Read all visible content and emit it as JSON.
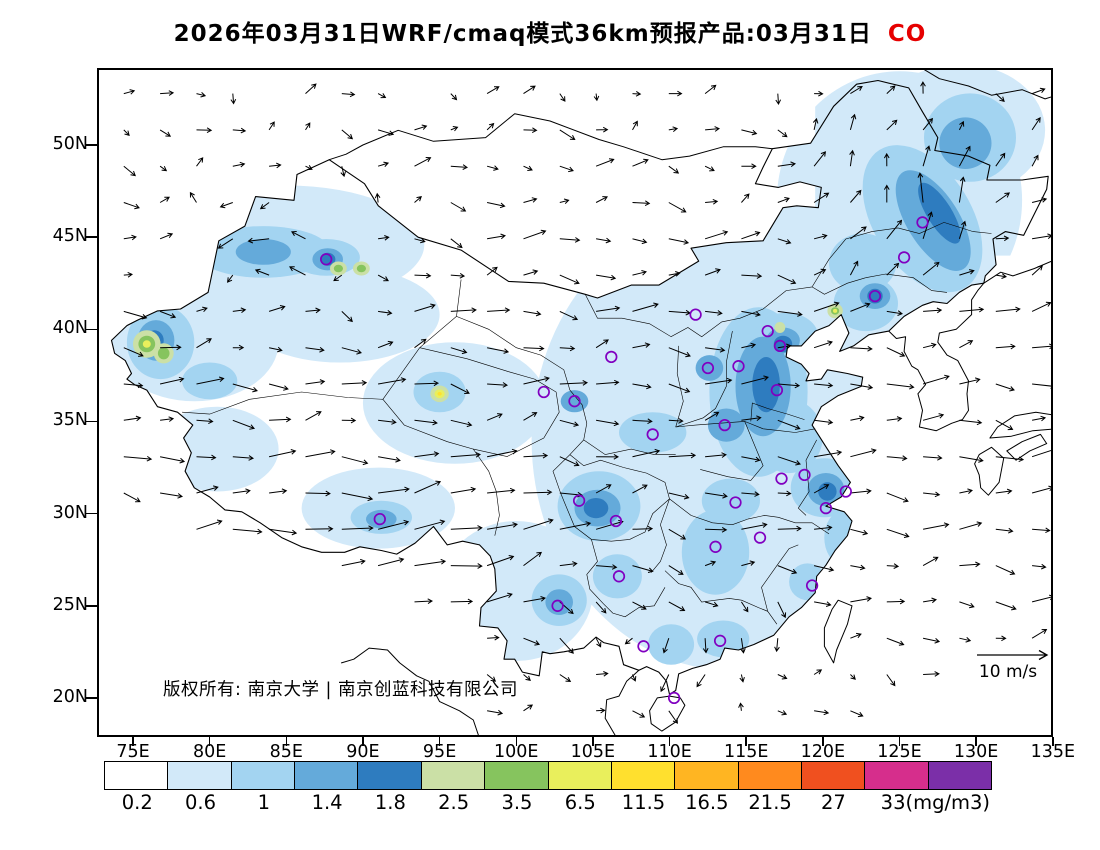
{
  "title": {
    "main": "2026年03月31日WRF/cmaq模式36km预报产品:03月31日",
    "species": "CO",
    "species_color": "#e60000"
  },
  "map": {
    "copyright": "版权所有: 南京大学 | 南京创蓝科技有限公司",
    "wind_ref_label": "10 m/s"
  },
  "axes": {
    "lat_labels": [
      "50N",
      "45N",
      "40N",
      "35N",
      "30N",
      "25N",
      "20N"
    ],
    "lon_labels": [
      "75E",
      "80E",
      "85E",
      "90E",
      "95E",
      "100E",
      "105E",
      "110E",
      "115E",
      "120E",
      "125E",
      "130E",
      "135E"
    ]
  },
  "colorbar": {
    "labels": [
      "0.2",
      "0.6",
      "1",
      "1.4",
      "1.8",
      "2.5",
      "3.5",
      "6.5",
      "11.5",
      "16.5",
      "21.5",
      "27",
      "33(mg/m3)"
    ],
    "units": "mg/m3"
  },
  "chart_data": {
    "type": "heatmap",
    "title": "2026年03月31日WRF/cmaq模式36km预报产品:03月31日 CO",
    "species": "CO",
    "units": "mg/m3",
    "model": "WRF/cmaq 36km",
    "x_range": [
      "75E",
      "135E"
    ],
    "y_range": [
      "20N",
      "50N"
    ],
    "levels": [
      0.2,
      0.6,
      1,
      1.4,
      1.8,
      2.5,
      3.5,
      6.5,
      11.5,
      16.5,
      21.5,
      27,
      33
    ],
    "palette": [
      "#ffffff",
      "#d2e9f9",
      "#a3d4f1",
      "#64aada",
      "#2e7cbf",
      "#cbe0a6",
      "#86c45e",
      "#e9ef5c",
      "#ffe02e",
      "#ffb522",
      "#ff8a1e",
      "#f0501f",
      "#d62e8c",
      "#7b2fa8"
    ],
    "wind_reference_ms": 10,
    "station_color": "#8000c0",
    "stations": [
      [
        126.5,
        45.8
      ],
      [
        125.3,
        43.9
      ],
      [
        123.4,
        41.8
      ],
      [
        116.4,
        39.9
      ],
      [
        117.2,
        39.1
      ],
      [
        114.5,
        38.0
      ],
      [
        112.5,
        37.9
      ],
      [
        111.7,
        40.8
      ],
      [
        117.0,
        36.7
      ],
      [
        113.6,
        34.8
      ],
      [
        108.9,
        34.3
      ],
      [
        103.8,
        36.1
      ],
      [
        101.8,
        36.6
      ],
      [
        106.2,
        38.5
      ],
      [
        87.6,
        43.8
      ],
      [
        91.1,
        29.7
      ],
      [
        104.1,
        30.7
      ],
      [
        106.5,
        29.6
      ],
      [
        106.7,
        26.6
      ],
      [
        102.7,
        25.0
      ],
      [
        108.3,
        22.8
      ],
      [
        110.3,
        20.0
      ],
      [
        113.3,
        23.1
      ],
      [
        113.0,
        28.2
      ],
      [
        115.9,
        28.7
      ],
      [
        114.3,
        30.6
      ],
      [
        117.3,
        31.9
      ],
      [
        118.8,
        32.1
      ],
      [
        121.5,
        31.2
      ],
      [
        120.2,
        30.3
      ],
      [
        119.3,
        26.1
      ]
    ],
    "field_blobs": [
      [
        1,
        114,
        34,
        13,
        12.5,
        0
      ],
      [
        1,
        125,
        47,
        8,
        7,
        0
      ],
      [
        1,
        85,
        44.6,
        9,
        3.2,
        0
      ],
      [
        1,
        79,
        39.3,
        5.5,
        3.2,
        0
      ],
      [
        1,
        88.5,
        40.8,
        6.5,
        2.6,
        0
      ],
      [
        1,
        96,
        36,
        6,
        3.3,
        0
      ],
      [
        1,
        80.5,
        33.5,
        4,
        2.3,
        0
      ],
      [
        1,
        91,
        30.3,
        5,
        2.2,
        0
      ],
      [
        1,
        100,
        25.8,
        5,
        3.8,
        0
      ],
      [
        1,
        129,
        50.8,
        5.5,
        3.6,
        0
      ],
      [
        1,
        121,
        43,
        5,
        3,
        0
      ],
      [
        2,
        126.5,
        46,
        3.2,
        4.4,
        -32
      ],
      [
        2,
        129.6,
        50.4,
        3.0,
        2.4,
        0
      ],
      [
        2,
        122.6,
        43.6,
        2.2,
        1.6,
        0
      ],
      [
        2,
        115.8,
        36.6,
        3.2,
        4.6,
        0
      ],
      [
        2,
        117.6,
        39.6,
        2.1,
        1.3,
        0
      ],
      [
        2,
        105.4,
        30.4,
        2.7,
        1.9,
        0
      ],
      [
        2,
        120.1,
        31.4,
        2.2,
        1.6,
        0
      ],
      [
        2,
        83.5,
        44.2,
        4.4,
        1.4,
        0
      ],
      [
        2,
        76.8,
        39.3,
        2.2,
        2.0,
        0
      ],
      [
        2,
        108.9,
        34.4,
        2.2,
        1.1,
        0
      ],
      [
        2,
        122.8,
        41.4,
        2.1,
        1.5,
        0
      ],
      [
        2,
        113.0,
        27.9,
        2.2,
        2.3,
        0
      ],
      [
        2,
        102.8,
        25.3,
        1.8,
        1.4,
        0
      ],
      [
        2,
        114.0,
        30.7,
        1.9,
        1.2,
        0
      ],
      [
        2,
        91.2,
        29.8,
        2.0,
        0.9,
        0
      ],
      [
        2,
        106.6,
        26.6,
        1.6,
        1.2,
        0
      ],
      [
        2,
        87.6,
        43.9,
        2.2,
        1.0,
        0
      ],
      [
        2,
        80.0,
        37.2,
        1.8,
        1.0,
        0
      ],
      [
        2,
        95.0,
        36.6,
        1.7,
        1.1,
        0
      ],
      [
        2,
        117.8,
        34.2,
        2.2,
        2.0,
        0
      ],
      [
        2,
        119.0,
        26.3,
        1.2,
        1.0,
        0
      ],
      [
        2,
        113.5,
        23.2,
        1.7,
        1.0,
        0
      ],
      [
        2,
        110.1,
        22.9,
        1.5,
        1.1,
        0
      ],
      [
        2,
        121.2,
        28.7,
        1.1,
        1.4,
        0
      ],
      [
        3,
        127.2,
        45.9,
        1.7,
        3.1,
        -32
      ],
      [
        3,
        116.1,
        36.9,
        1.8,
        2.7,
        0
      ],
      [
        3,
        117.4,
        39.4,
        1.1,
        0.7,
        0
      ],
      [
        3,
        105.3,
        30.3,
        1.5,
        1.0,
        0
      ],
      [
        3,
        120.2,
        31.3,
        1.2,
        0.9,
        0
      ],
      [
        3,
        76.5,
        39.4,
        1.2,
        1.1,
        0
      ],
      [
        3,
        83.5,
        44.2,
        1.8,
        0.7,
        0
      ],
      [
        3,
        87.7,
        43.8,
        1.0,
        0.6,
        0
      ],
      [
        3,
        123.4,
        41.8,
        1.0,
        0.7,
        0
      ],
      [
        3,
        103.8,
        36.1,
        0.9,
        0.6,
        0
      ],
      [
        3,
        91.2,
        29.7,
        1.0,
        0.5,
        0
      ],
      [
        3,
        113.7,
        34.8,
        1.2,
        0.9,
        0
      ],
      [
        3,
        112.6,
        37.9,
        0.9,
        0.7,
        0
      ],
      [
        3,
        102.8,
        25.2,
        0.9,
        0.7,
        0
      ],
      [
        3,
        129.3,
        50.1,
        1.7,
        1.4,
        0
      ],
      [
        4,
        127.6,
        46.3,
        0.8,
        1.9,
        -32
      ],
      [
        4,
        116.3,
        37.0,
        0.9,
        1.5,
        0
      ],
      [
        4,
        117.4,
        39.2,
        0.6,
        0.45,
        0
      ],
      [
        4,
        105.2,
        30.3,
        0.8,
        0.55,
        0
      ],
      [
        4,
        76.4,
        39.4,
        0.6,
        0.55,
        0
      ],
      [
        4,
        120.3,
        31.2,
        0.6,
        0.5,
        0
      ],
      [
        4,
        123.4,
        41.8,
        0.5,
        0.4,
        0
      ],
      [
        4,
        87.7,
        43.8,
        0.5,
        0.35,
        0
      ],
      [
        5,
        75.9,
        39.2,
        0.9,
        0.75,
        0
      ],
      [
        5,
        77.0,
        38.7,
        0.65,
        0.55,
        0
      ],
      [
        5,
        94.2,
        27.9,
        0.95,
        0.7,
        0
      ],
      [
        5,
        88.4,
        43.3,
        0.55,
        0.38,
        0
      ],
      [
        5,
        89.9,
        43.3,
        0.55,
        0.38,
        0
      ],
      [
        5,
        120.8,
        41.0,
        0.5,
        0.4,
        0
      ],
      [
        5,
        95.0,
        36.5,
        0.6,
        0.45,
        0
      ],
      [
        5,
        117.2,
        40.1,
        0.35,
        0.3,
        0
      ],
      [
        6,
        75.9,
        39.2,
        0.55,
        0.45,
        0
      ],
      [
        6,
        77.0,
        38.7,
        0.38,
        0.33,
        0
      ],
      [
        6,
        94.2,
        27.9,
        0.55,
        0.4,
        0
      ],
      [
        6,
        88.4,
        43.3,
        0.3,
        0.2,
        0
      ],
      [
        6,
        89.9,
        43.3,
        0.3,
        0.2,
        0
      ],
      [
        6,
        120.8,
        41.0,
        0.27,
        0.2,
        0
      ],
      [
        7,
        95.0,
        36.5,
        0.33,
        0.24,
        0
      ],
      [
        7,
        94.1,
        27.8,
        0.3,
        0.22,
        0
      ],
      [
        7,
        75.9,
        39.2,
        0.26,
        0.2,
        0
      ],
      [
        7,
        120.8,
        41.0,
        0.14,
        0.11,
        0
      ],
      [
        8,
        94.1,
        27.7,
        0.17,
        0.13,
        0
      ],
      [
        8,
        95.0,
        36.5,
        0.14,
        0.1,
        0
      ],
      [
        10,
        94.0,
        27.5,
        0.11,
        0.09,
        0
      ]
    ]
  }
}
